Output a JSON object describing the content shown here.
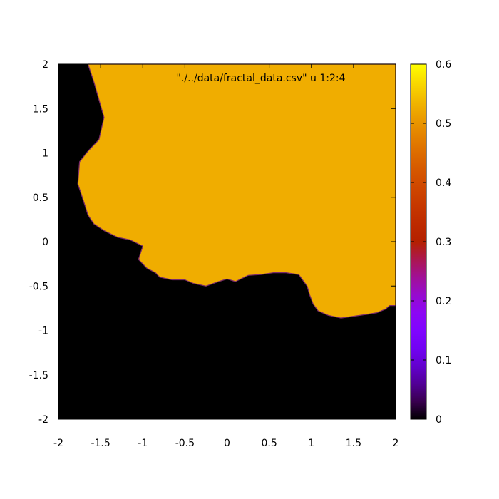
{
  "chart_data": {
    "type": "heatmap",
    "title": "",
    "xlabel": "",
    "ylabel": "",
    "key_label": "\"./../data/fractal_data.csv\" u 1:2:4",
    "xlim": [
      -2,
      2
    ],
    "ylim": [
      -2,
      2
    ],
    "x_ticks": [
      "-2",
      "-1.5",
      "-1",
      "-0.5",
      "0",
      "0.5",
      "1",
      "1.5",
      "2"
    ],
    "y_ticks": [
      "2",
      "1.5",
      "1",
      "0.5",
      "0",
      "-0.5",
      "-1",
      "-1.5",
      "-2"
    ],
    "colorbar": {
      "range": [
        0,
        0.6
      ],
      "ticks": [
        "0.6",
        "0.5",
        "0.4",
        "0.3",
        "0.2",
        "0.1",
        "0"
      ]
    },
    "regions": [
      {
        "name": "set interior",
        "value": 0.53,
        "color": "#f0ad00"
      },
      {
        "name": "outside",
        "value": 0.0,
        "color": "#000000"
      }
    ],
    "boundary": [
      [
        -1.65,
        2.0
      ],
      [
        -1.58,
        1.8
      ],
      [
        -1.52,
        1.6
      ],
      [
        -1.46,
        1.4
      ],
      [
        -1.52,
        1.15
      ],
      [
        -1.65,
        1.02
      ],
      [
        -1.75,
        0.9
      ],
      [
        -1.77,
        0.65
      ],
      [
        -1.7,
        0.45
      ],
      [
        -1.65,
        0.3
      ],
      [
        -1.58,
        0.2
      ],
      [
        -1.45,
        0.12
      ],
      [
        -1.3,
        0.05
      ],
      [
        -1.15,
        0.02
      ],
      [
        -1.0,
        -0.05
      ],
      [
        -1.05,
        -0.2
      ],
      [
        -0.95,
        -0.3
      ],
      [
        -0.85,
        -0.35
      ],
      [
        -0.8,
        -0.4
      ],
      [
        -0.65,
        -0.43
      ],
      [
        -0.5,
        -0.43
      ],
      [
        -0.4,
        -0.47
      ],
      [
        -0.25,
        -0.5
      ],
      [
        -0.1,
        -0.45
      ],
      [
        0.0,
        -0.42
      ],
      [
        0.1,
        -0.45
      ],
      [
        0.25,
        -0.38
      ],
      [
        0.4,
        -0.37
      ],
      [
        0.55,
        -0.35
      ],
      [
        0.7,
        -0.35
      ],
      [
        0.85,
        -0.37
      ],
      [
        0.95,
        -0.5
      ],
      [
        0.98,
        -0.6
      ],
      [
        1.02,
        -0.7
      ],
      [
        1.08,
        -0.78
      ],
      [
        1.2,
        -0.83
      ],
      [
        1.35,
        -0.86
      ],
      [
        1.5,
        -0.84
      ],
      [
        1.65,
        -0.82
      ],
      [
        1.78,
        -0.8
      ],
      [
        1.88,
        -0.76
      ],
      [
        1.93,
        -0.72
      ],
      [
        2.0,
        -0.72
      ]
    ]
  }
}
